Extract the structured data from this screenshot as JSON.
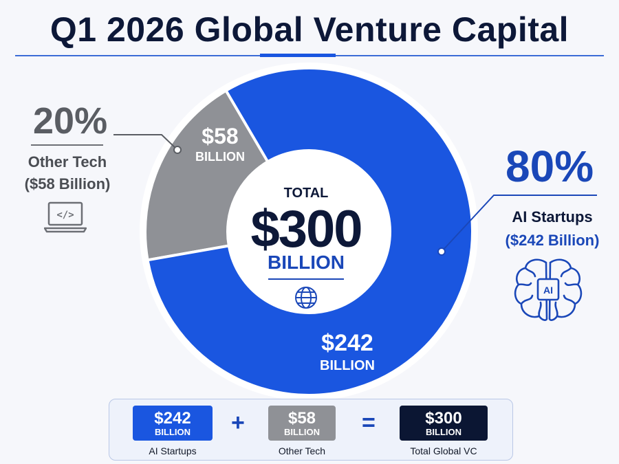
{
  "title": "Q1 2026 Global Venture Capital",
  "colors": {
    "ai": "#1a56e0",
    "other": "#8f9196",
    "total": "#0b1633",
    "accent": "#1a47b8"
  },
  "chart_data": {
    "type": "pie",
    "donut": true,
    "center": {
      "label": "TOTAL",
      "value": "$300",
      "unit": "BILLION",
      "icon": "globe-icon"
    },
    "slices": [
      {
        "name": "AI Startups",
        "value": 242,
        "percent": 80,
        "percent_label": "80%",
        "value_label": "$242",
        "unit_label": "BILLION",
        "detail": "($242 Billion)",
        "color": "#1a56e0",
        "icon": "brain-ai-icon"
      },
      {
        "name": "Other Tech",
        "value": 58,
        "percent": 20,
        "percent_label": "20%",
        "value_label": "$58",
        "unit_label": "BILLION",
        "detail": "($58 Billion)",
        "color": "#8f9196",
        "icon": "laptop-code-icon"
      }
    ]
  },
  "equation": {
    "ai": {
      "value": "$242",
      "unit": "BILLION",
      "caption": "AI Startups"
    },
    "plus": "+",
    "other": {
      "value": "$58",
      "unit": "BILLION",
      "caption": "Other Tech"
    },
    "equals": "=",
    "total": {
      "value": "$300",
      "unit": "BILLION",
      "caption": "Total Global VC"
    }
  }
}
